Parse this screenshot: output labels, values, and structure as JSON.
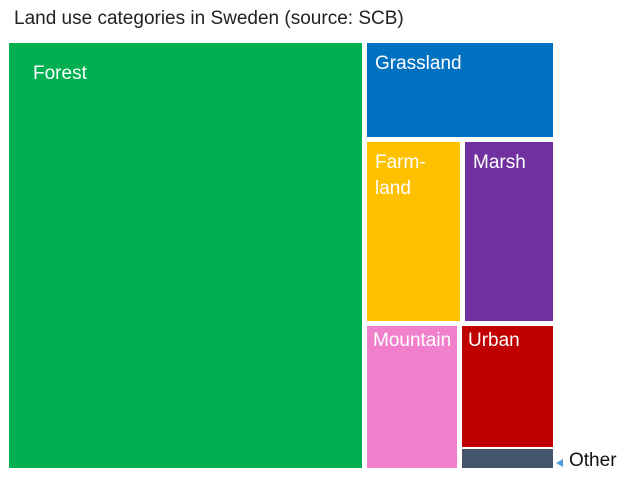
{
  "chart_data": {
    "type": "treemap",
    "title": "Land use categories in Sweden (source: SCB)",
    "items": [
      {
        "name": "Forest",
        "label": "Forest",
        "value": 64.8,
        "color": "#00b050"
      },
      {
        "name": "Grassland",
        "label": "Grassland",
        "value": 7.8,
        "color": "#0070c0"
      },
      {
        "name": "Farmland",
        "label": "Farm-\nland",
        "value": 7.6,
        "color": "#ffc000"
      },
      {
        "name": "Marsh",
        "label": "Marsh",
        "value": 7.6,
        "color": "#7030a0"
      },
      {
        "name": "Mountain",
        "label": "Mountain",
        "value": 5.9,
        "color": "#f080cc"
      },
      {
        "name": "Urban",
        "label": "Urban",
        "value": 5.4,
        "color": "#c00000"
      },
      {
        "name": "Other",
        "label": "Other",
        "value": 0.9,
        "color": "#44546a"
      }
    ]
  }
}
